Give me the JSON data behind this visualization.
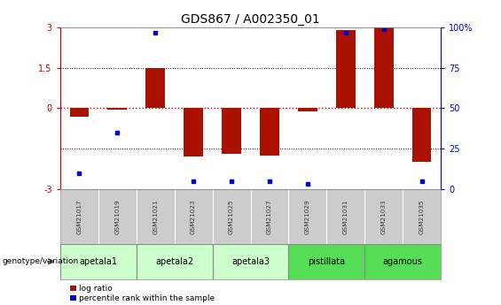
{
  "title": "GDS867 / A002350_01",
  "samples": [
    "GSM21017",
    "GSM21019",
    "GSM21021",
    "GSM21023",
    "GSM21025",
    "GSM21027",
    "GSM21029",
    "GSM21031",
    "GSM21033",
    "GSM21035"
  ],
  "log_ratio": [
    -0.3,
    -0.05,
    1.5,
    -1.8,
    -1.7,
    -1.75,
    -0.1,
    2.9,
    3.0,
    -2.0
  ],
  "percentile_rank": [
    10,
    35,
    97,
    5,
    5,
    5,
    3,
    97,
    99,
    5
  ],
  "groups": [
    {
      "name": "apetala1",
      "samples": [
        "GSM21017",
        "GSM21019"
      ],
      "color": "#ccffcc"
    },
    {
      "name": "apetala2",
      "samples": [
        "GSM21021",
        "GSM21023"
      ],
      "color": "#ccffcc"
    },
    {
      "name": "apetala3",
      "samples": [
        "GSM21025",
        "GSM21027"
      ],
      "color": "#ccffcc"
    },
    {
      "name": "pistillata",
      "samples": [
        "GSM21029",
        "GSM21031"
      ],
      "color": "#55dd55"
    },
    {
      "name": "agamous",
      "samples": [
        "GSM21033",
        "GSM21035"
      ],
      "color": "#55dd55"
    }
  ],
  "ylim": [
    -3,
    3
  ],
  "bar_color": "#aa1100",
  "dot_color": "#0000cc",
  "zero_line_color": "#cc0000",
  "dotted_line_color": "#000000",
  "right_axis_color": "#0000cc",
  "left_axis_color": "#cc0000",
  "background_color": "#ffffff",
  "plot_bg_color": "#ffffff",
  "genotype_label": "genotype/variation",
  "legend_log": "log ratio",
  "legend_pct": "percentile rank within the sample"
}
